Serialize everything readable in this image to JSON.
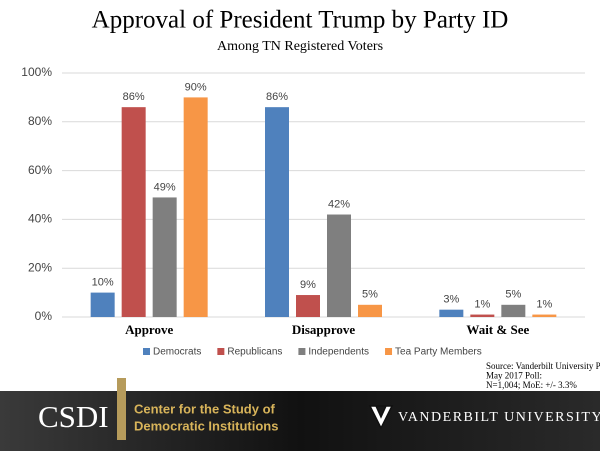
{
  "chart_data": {
    "type": "bar",
    "title": "Approval of President Trump by Party ID",
    "subtitle": "Among TN Registered Voters",
    "categories": [
      "Approve",
      "Disapprove",
      "Wait & See"
    ],
    "series": [
      {
        "name": "Democrats",
        "color": "#4f81bd",
        "values": [
          10,
          86,
          3
        ],
        "value_labels": [
          "10%",
          "86%",
          "3%"
        ]
      },
      {
        "name": "Republicans",
        "color": "#c0504d",
        "values": [
          86,
          9,
          1
        ],
        "value_labels": [
          "86%",
          "9%",
          "1%"
        ]
      },
      {
        "name": "Independents",
        "color": "#7f7f7f",
        "values": [
          49,
          42,
          5
        ],
        "value_labels": [
          "49%",
          "42%",
          "5%"
        ]
      },
      {
        "name": "Tea Party Members",
        "color": "#f79646",
        "values": [
          90,
          5,
          1
        ],
        "value_labels": [
          "90%",
          "5%",
          "1%"
        ]
      }
    ],
    "ylim": [
      0,
      100
    ],
    "yticks": [
      {
        "value": 0,
        "label": "0%"
      },
      {
        "value": 20,
        "label": "20%"
      },
      {
        "value": 40,
        "label": "40%"
      },
      {
        "value": 60,
        "label": "60%"
      },
      {
        "value": 80,
        "label": "80%"
      },
      {
        "value": 100,
        "label": "100%"
      }
    ],
    "grid": true,
    "legend": "bottom",
    "annotations": [
      "Source: Vanderbilt University Polls",
      "May 2017 Poll:",
      "N=1,004; MoE: +/- 3.3%"
    ]
  },
  "footer": {
    "logo": "CSDI",
    "center_line1": "Center for the Study of",
    "center_line2": "Democratic Institutions",
    "university": "VANDERBILT UNIVERSITY"
  }
}
